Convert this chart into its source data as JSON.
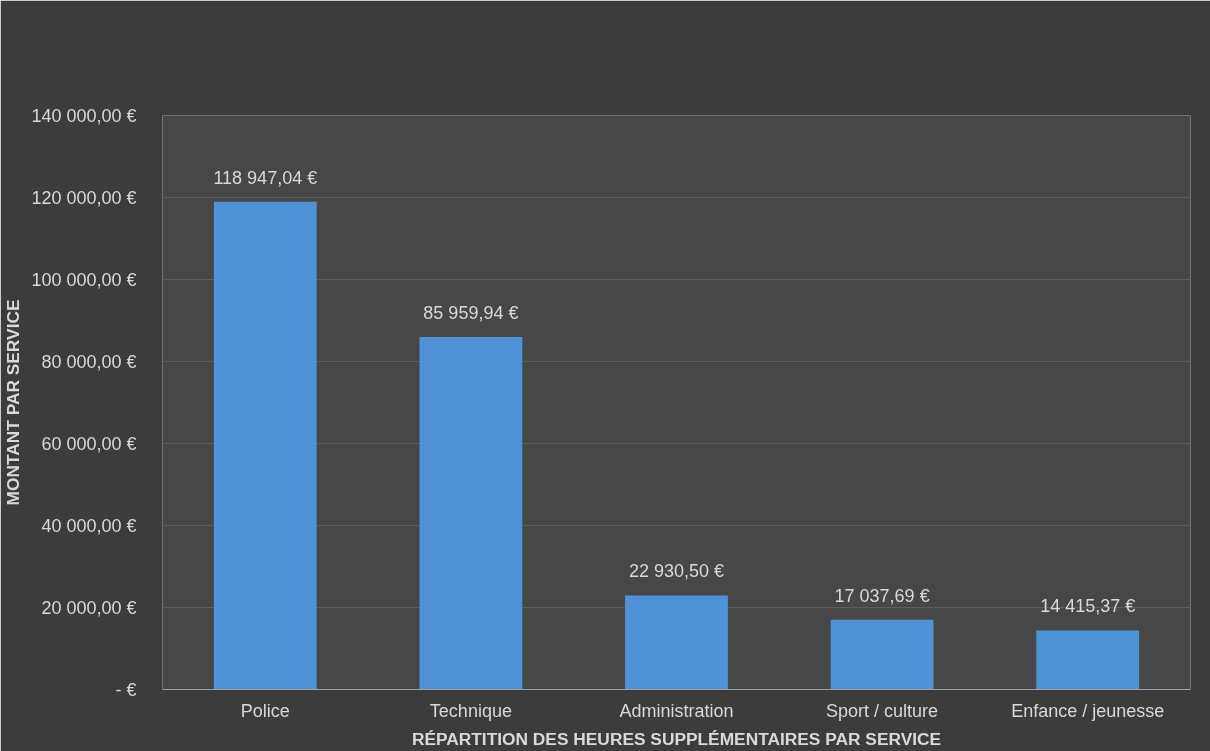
{
  "chart_data": {
    "type": "bar",
    "xlabel": "RÉPARTITION DES HEURES SUPPLÉMENTAIRES PAR SERVICE",
    "ylabel": "MONTANT PAR SERVICE",
    "categories": [
      "Police",
      "Technique",
      "Administration",
      "Sport / culture",
      "Enfance / jeunesse"
    ],
    "values": [
      118947.04,
      85959.94,
      22930.5,
      17037.69,
      14415.37
    ],
    "value_labels": [
      "118 947,04 €",
      "85 959,94 €",
      "22 930,50 €",
      "17 037,69 €",
      "14 415,37 €"
    ],
    "color": "#4f93d6",
    "ylim": [
      0,
      140000
    ],
    "yticks": [
      {
        "value": 0,
        "label": "- €"
      },
      {
        "value": 20000,
        "label": "20 000,00 €"
      },
      {
        "value": 40000,
        "label": "40 000,00 €"
      },
      {
        "value": 60000,
        "label": "60 000,00 €"
      },
      {
        "value": 80000,
        "label": "80 000,00 €"
      },
      {
        "value": 100000,
        "label": "100 000,00 €"
      },
      {
        "value": 120000,
        "label": "120 000,00 €"
      },
      {
        "value": 140000,
        "label": "140 000,00 €"
      }
    ],
    "grid": "y"
  }
}
